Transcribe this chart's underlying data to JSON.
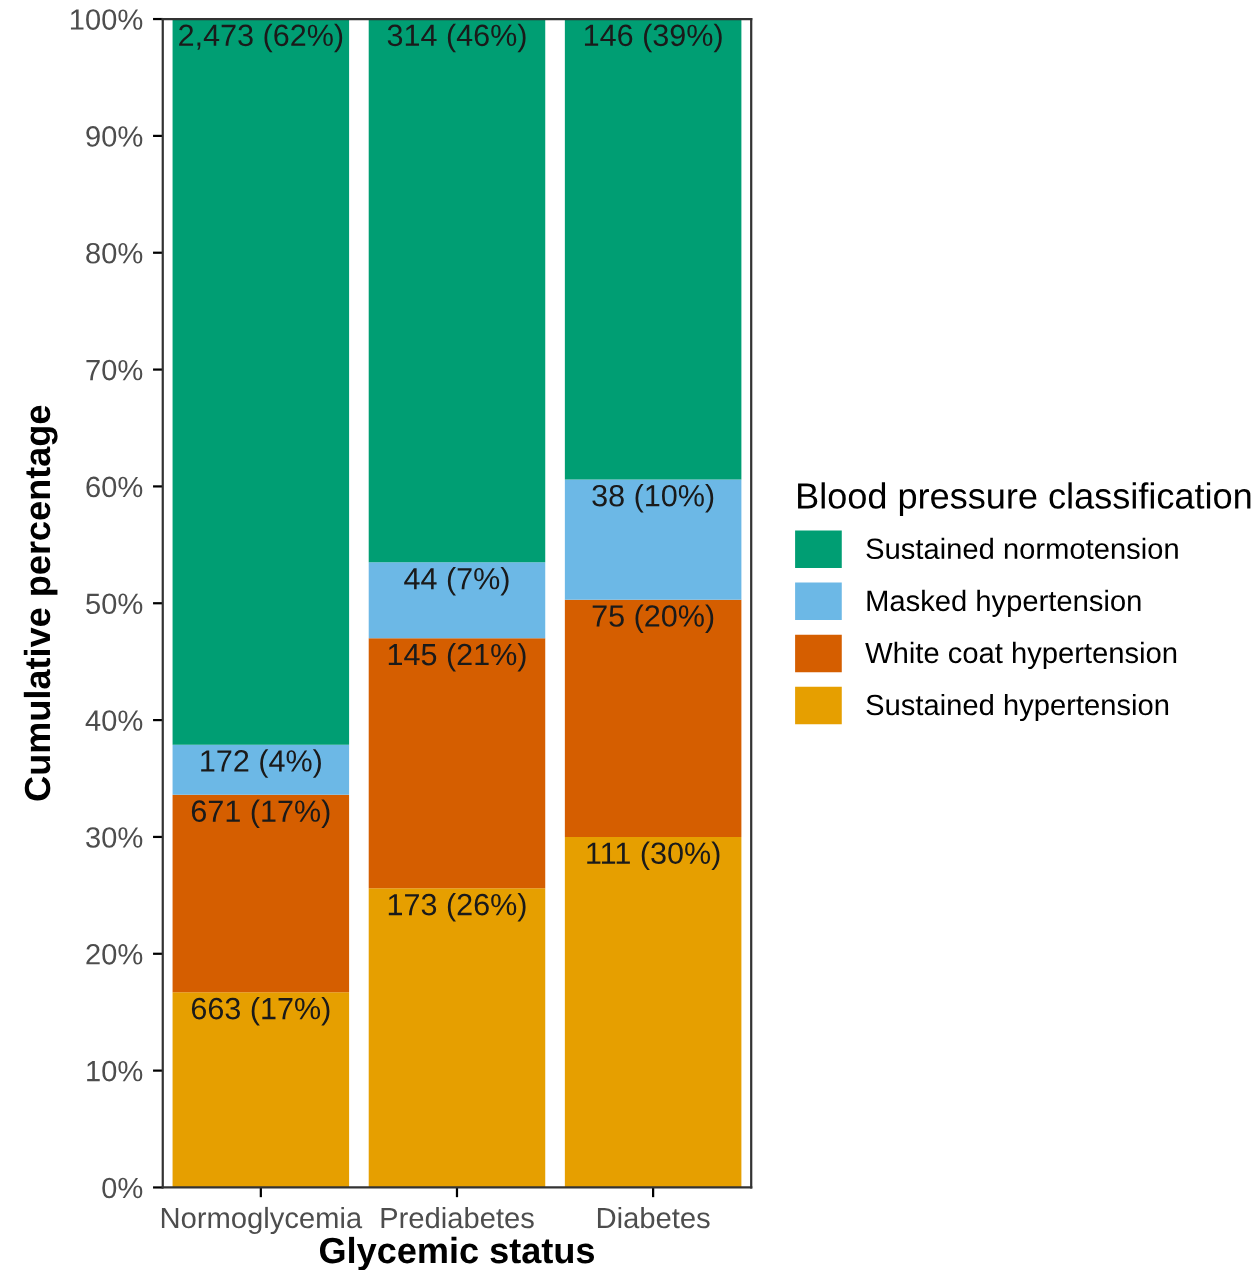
{
  "chart_data": {
    "type": "bar",
    "stacked": true,
    "xlabel": "Glycemic status",
    "ylabel": "Cumulative percentage",
    "legend_title": "Blood pressure classification",
    "legend": "right",
    "categories": [
      "Normoglycemia",
      "Prediabetes",
      "Diabetes"
    ],
    "series": [
      {
        "name": "Sustained hypertension",
        "color": "#e69f00",
        "values": [
          16.7,
          25.6,
          30.0
        ],
        "value_labels": [
          "663 (17%)",
          "173 (26%)",
          "111 (30%)"
        ]
      },
      {
        "name": "White coat hypertension",
        "color": "#d55e00",
        "values": [
          16.9,
          21.4,
          20.3
        ],
        "value_labels": [
          "671 (17%)",
          "145 (21%)",
          "75 (20%)"
        ]
      },
      {
        "name": "Masked hypertension",
        "color": "#6cb8e6",
        "values": [
          4.3,
          6.5,
          10.3
        ],
        "value_labels": [
          "172 (4%)",
          "44 (7%)",
          "38 (10%)"
        ]
      },
      {
        "name": "Sustained normotension",
        "color": "#009e73",
        "values": [
          62.1,
          46.5,
          39.4
        ],
        "value_labels": [
          "2,473 (62%)",
          "314 (46%)",
          "146 (39%)"
        ]
      }
    ],
    "ylim": [
      0,
      100
    ],
    "yticks": [
      {
        "value": 0,
        "label": "0%"
      },
      {
        "value": 10,
        "label": "10%"
      },
      {
        "value": 20,
        "label": "20%"
      },
      {
        "value": 30,
        "label": "30%"
      },
      {
        "value": 40,
        "label": "40%"
      },
      {
        "value": 50,
        "label": "50%"
      },
      {
        "value": 60,
        "label": "60%"
      },
      {
        "value": 70,
        "label": "70%"
      },
      {
        "value": 80,
        "label": "80%"
      },
      {
        "value": 90,
        "label": "90%"
      },
      {
        "value": 100,
        "label": "100%"
      }
    ],
    "grid": false
  }
}
